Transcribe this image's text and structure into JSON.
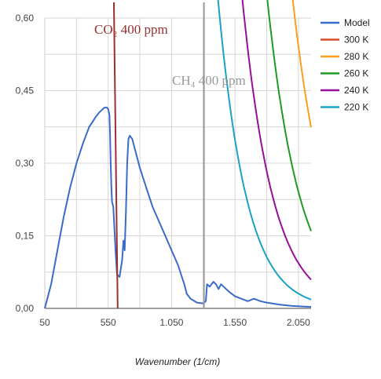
{
  "chart_data": {
    "type": "line",
    "title": "",
    "xlabel": "Wavenumber (1/cm)",
    "ylabel": "",
    "xlim": [
      50,
      2150
    ],
    "ylim": [
      0,
      0.6
    ],
    "x_ticks": [
      "50",
      "550",
      "1.050",
      "1.550",
      "2.050"
    ],
    "x_tick_values": [
      50,
      550,
      1050,
      1550,
      2050
    ],
    "y_ticks": [
      "0,00",
      "0,15",
      "0,30",
      "0,45",
      "0,60"
    ],
    "y_tick_values": [
      0,
      0.15,
      0.3,
      0.45,
      0.6
    ],
    "grid": true,
    "legend_position": "right",
    "planck_scale": 2.364e-06,
    "series": [
      {
        "name": "Model",
        "color": "#3a6bc8",
        "kind": "model",
        "points": [
          [
            50,
            0.0
          ],
          [
            100,
            0.05
          ],
          [
            150,
            0.12
          ],
          [
            200,
            0.19
          ],
          [
            250,
            0.25
          ],
          [
            300,
            0.3
          ],
          [
            350,
            0.34
          ],
          [
            400,
            0.375
          ],
          [
            450,
            0.395
          ],
          [
            480,
            0.405
          ],
          [
            500,
            0.41
          ],
          [
            520,
            0.415
          ],
          [
            540,
            0.415
          ],
          [
            550,
            0.412
          ],
          [
            560,
            0.4
          ],
          [
            565,
            0.36
          ],
          [
            570,
            0.3
          ],
          [
            575,
            0.25
          ],
          [
            580,
            0.22
          ],
          [
            590,
            0.21
          ],
          [
            600,
            0.16
          ],
          [
            610,
            0.11
          ],
          [
            620,
            0.07
          ],
          [
            640,
            0.065
          ],
          [
            660,
            0.1
          ],
          [
            670,
            0.14
          ],
          [
            680,
            0.12
          ],
          [
            690,
            0.2
          ],
          [
            700,
            0.3
          ],
          [
            710,
            0.35
          ],
          [
            720,
            0.357
          ],
          [
            740,
            0.35
          ],
          [
            760,
            0.33
          ],
          [
            800,
            0.29
          ],
          [
            850,
            0.25
          ],
          [
            900,
            0.21
          ],
          [
            950,
            0.18
          ],
          [
            1000,
            0.15
          ],
          [
            1050,
            0.12
          ],
          [
            1100,
            0.09
          ],
          [
            1150,
            0.05
          ],
          [
            1170,
            0.03
          ],
          [
            1200,
            0.02
          ],
          [
            1250,
            0.012
          ],
          [
            1300,
            0.01
          ],
          [
            1320,
            0.015
          ],
          [
            1330,
            0.05
          ],
          [
            1350,
            0.045
          ],
          [
            1380,
            0.055
          ],
          [
            1400,
            0.05
          ],
          [
            1420,
            0.04
          ],
          [
            1440,
            0.05
          ],
          [
            1460,
            0.045
          ],
          [
            1480,
            0.04
          ],
          [
            1500,
            0.035
          ],
          [
            1550,
            0.025
          ],
          [
            1600,
            0.02
          ],
          [
            1650,
            0.015
          ],
          [
            1700,
            0.02
          ],
          [
            1750,
            0.015
          ],
          [
            1800,
            0.012
          ],
          [
            1900,
            0.008
          ],
          [
            2000,
            0.005
          ],
          [
            2150,
            0.003
          ]
        ]
      },
      {
        "name": "300 K",
        "color": "#d84a2a",
        "kind": "planck",
        "T": 300
      },
      {
        "name": "280 K",
        "color": "#f5a020",
        "kind": "planck",
        "T": 280
      },
      {
        "name": "260 K",
        "color": "#1f9a22",
        "kind": "planck",
        "T": 260
      },
      {
        "name": "240 K",
        "color": "#960e9a",
        "kind": "planck",
        "T": 240
      },
      {
        "name": "220 K",
        "color": "#1aa2c6",
        "kind": "planck",
        "T": 220
      }
    ],
    "annotations": [
      {
        "text": "CO₂ 400 ppm",
        "color": "#9b3030",
        "line_from": [
          625,
          0.0
        ],
        "line_to": [
          595,
          0.6
        ]
      },
      {
        "text": "CH₄ 400 ppm",
        "color": "#999999",
        "line_from": [
          1305,
          0.0
        ],
        "line_to": [
          1305,
          0.6
        ]
      }
    ]
  }
}
